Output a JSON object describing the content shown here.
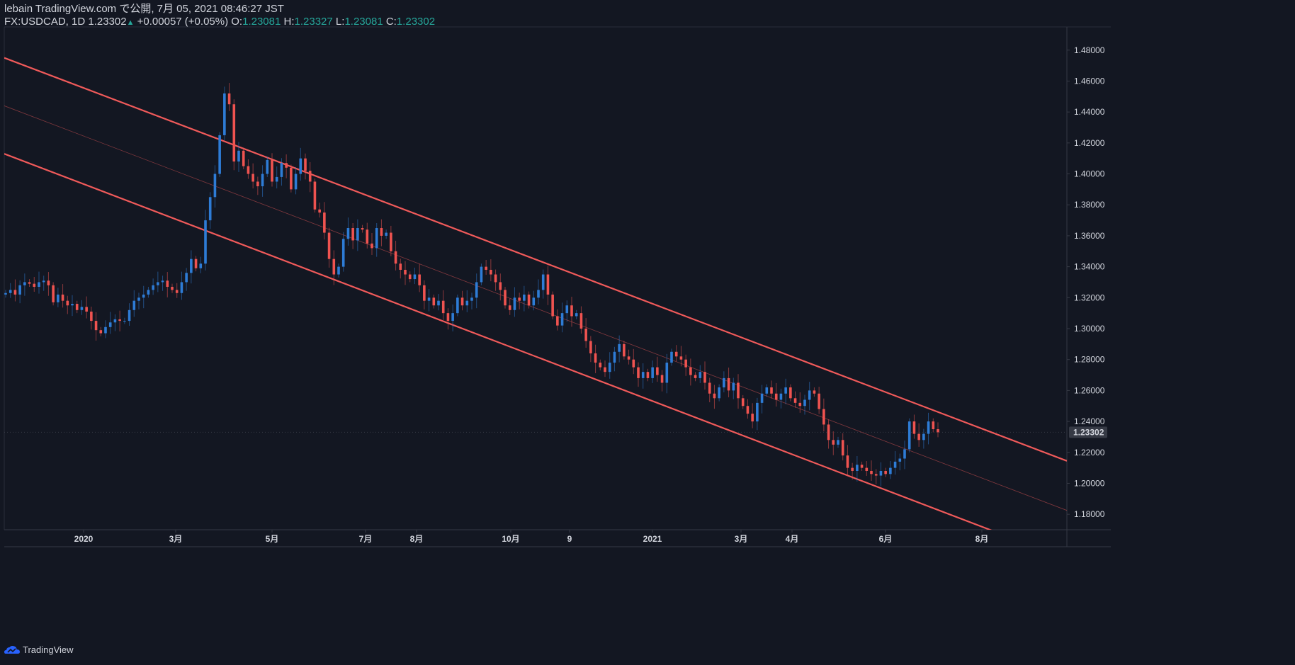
{
  "header": {
    "line1": "lebain TradingView.com で公開, 7月 05, 2021 08:46:27 JST",
    "symbol": "FX:USDCAD, 1D",
    "last": "1.23302",
    "change": "+0.00057 (+0.05%)",
    "o_label": "O:",
    "o_value": "1.23081",
    "h_label": "H:",
    "h_value": "1.23327",
    "l_label": "L:",
    "l_value": "1.23081",
    "c_label": "C:",
    "c_value": "1.23302"
  },
  "footer": {
    "brand": "TradingView"
  },
  "colors": {
    "background": "#131722",
    "up": "#2e7cd6",
    "down": "#ef5350",
    "channel": "#f05a5a",
    "axis_text": "#d1d4dc",
    "price_label_bg": "#363a45"
  },
  "chart_data": {
    "type": "candlestick",
    "symbol": "FX:USDCAD",
    "interval": "1D",
    "ylim": [
      1.17,
      1.495
    ],
    "yticks": [
      "1.48000",
      "1.46000",
      "1.44000",
      "1.42000",
      "1.40000",
      "1.38000",
      "1.36000",
      "1.34000",
      "1.32000",
      "1.30000",
      "1.28000",
      "1.26000",
      "1.24000",
      "1.22000",
      "1.20000",
      "1.18000"
    ],
    "xtick_labels": [
      "2020",
      "3月",
      "5月",
      "7月",
      "8月",
      "10月",
      "9",
      "2021",
      "3月",
      "4月",
      "6月",
      "8月"
    ],
    "last_price": "1.23302",
    "closes": [
      1.323,
      1.325,
      1.322,
      1.328,
      1.33,
      1.329,
      1.327,
      1.33,
      1.331,
      1.328,
      1.317,
      1.322,
      1.318,
      1.315,
      1.316,
      1.312,
      1.314,
      1.311,
      1.305,
      1.299,
      1.297,
      1.301,
      1.304,
      1.306,
      1.305,
      1.305,
      1.312,
      1.318,
      1.32,
      1.322,
      1.325,
      1.328,
      1.33,
      1.331,
      1.327,
      1.325,
      1.323,
      1.33,
      1.336,
      1.345,
      1.339,
      1.342,
      1.37,
      1.385,
      1.4,
      1.425,
      1.452,
      1.445,
      1.408,
      1.415,
      1.405,
      1.4,
      1.395,
      1.392,
      1.4,
      1.409,
      1.395,
      1.398,
      1.407,
      1.404,
      1.39,
      1.4,
      1.41,
      1.402,
      1.395,
      1.377,
      1.375,
      1.362,
      1.345,
      1.335,
      1.34,
      1.358,
      1.365,
      1.357,
      1.365,
      1.364,
      1.355,
      1.352,
      1.365,
      1.36,
      1.362,
      1.35,
      1.342,
      1.338,
      1.335,
      1.332,
      1.335,
      1.328,
      1.318,
      1.32,
      1.315,
      1.318,
      1.31,
      1.305,
      1.31,
      1.32,
      1.315,
      1.318,
      1.32,
      1.33,
      1.34,
      1.338,
      1.335,
      1.33,
      1.325,
      1.315,
      1.312,
      1.32,
      1.318,
      1.322,
      1.315,
      1.32,
      1.325,
      1.335,
      1.322,
      1.308,
      1.302,
      1.31,
      1.315,
      1.308,
      1.31,
      1.3,
      1.292,
      1.284,
      1.278,
      1.275,
      1.272,
      1.278,
      1.285,
      1.29,
      1.282,
      1.28,
      1.275,
      1.268,
      1.272,
      1.268,
      1.275,
      1.27,
      1.265,
      1.278,
      1.285,
      1.282,
      1.28,
      1.275,
      1.27,
      1.268,
      1.272,
      1.265,
      1.258,
      1.255,
      1.262,
      1.268,
      1.26,
      1.265,
      1.255,
      1.25,
      1.245,
      1.24,
      1.252,
      1.258,
      1.262,
      1.258,
      1.254,
      1.258,
      1.262,
      1.255,
      1.252,
      1.25,
      1.254,
      1.26,
      1.258,
      1.248,
      1.238,
      1.228,
      1.225,
      1.228,
      1.218,
      1.21,
      1.208,
      1.212,
      1.21,
      1.208,
      1.206,
      1.205,
      1.208,
      1.206,
      1.21,
      1.214,
      1.216,
      1.222,
      1.24,
      1.232,
      1.228,
      1.232,
      1.24,
      1.235,
      1.233
    ],
    "channel": {
      "upper": {
        "x1": 0.0,
        "y1": 1.475,
        "x2": 1.0,
        "y2": 1.2145
      },
      "middle": {
        "x1": 0.0,
        "y1": 1.444,
        "x2": 1.0,
        "y2": 1.1825
      },
      "lower": {
        "x1": 0.0,
        "y1": 1.413,
        "x2": 1.0,
        "y2": 1.151
      }
    }
  }
}
